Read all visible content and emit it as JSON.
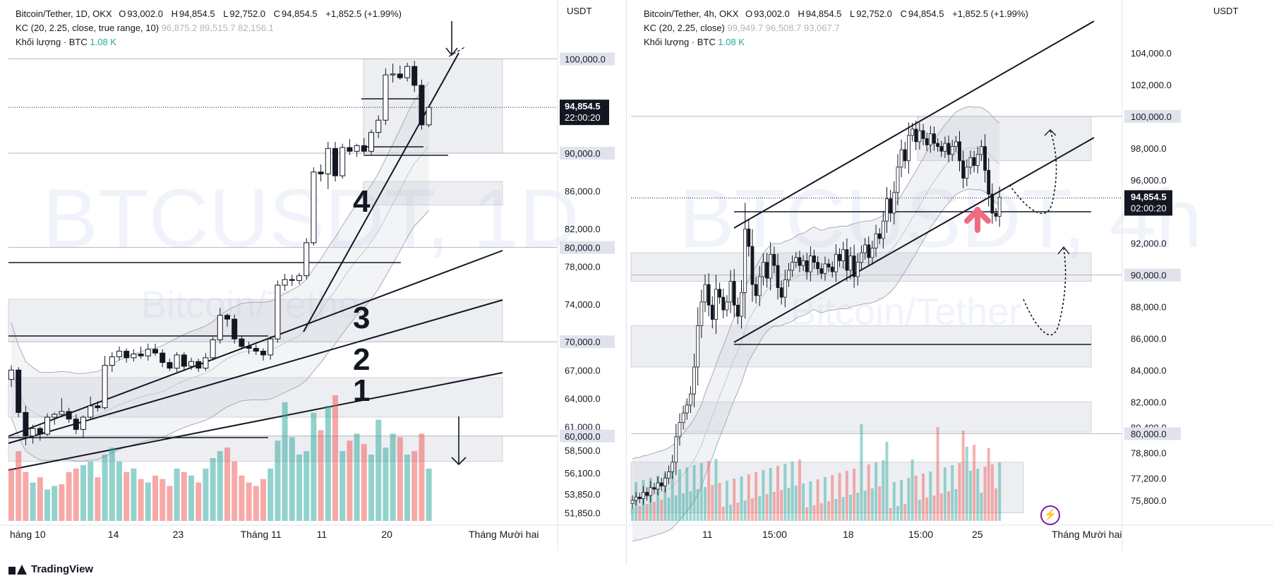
{
  "left": {
    "symbol": "Bitcoin/Tether, 1D, OKX",
    "ohlc": {
      "o_label": "O",
      "o": "93,002.0",
      "h_label": "H",
      "h": "94,854.5",
      "l_label": "L",
      "l": "92,752.0",
      "c_label": "C",
      "c": "94,854.5",
      "change": "+1,852.5 (+1.99%)"
    },
    "kc": {
      "label": "KC (20, 2.25, close, true range, 10)",
      "v1": "96,875.2",
      "v2": "89,515.7",
      "v3": "82,156.1"
    },
    "volume": {
      "label": "Khối lượng · BTC",
      "value": "1.08 K"
    },
    "currency": "USDT",
    "watermark": "BTCUSDT, 1D",
    "watermark_sub": "Bitcoin/Tether",
    "price_badge": {
      "price": "94,854.5",
      "time": "22:00:20"
    },
    "wave_labels": [
      "4",
      "3",
      "2",
      "1"
    ],
    "chart_data": {
      "type": "candlestick",
      "title": "Bitcoin/Tether, 1D, OKX",
      "ylim": [
        51000,
        104000
      ],
      "yticks": [
        100000,
        90000,
        86000,
        82000,
        80000,
        78000,
        74000,
        70000,
        67000,
        64000,
        61000,
        60000,
        58500,
        56100,
        53850,
        51850
      ],
      "ytick_labels": [
        "100,000.0",
        "90,000.0",
        "86,000.0",
        "82,000.0",
        "80,000.0",
        "78,000.0",
        "74,000.0",
        "70,000.0",
        "67,000.0",
        "64,000.0",
        "61,000.0",
        "60,000.0",
        "58,500.0",
        "56,100.0",
        "53,850.0",
        "51,850.0"
      ],
      "highlighted_levels": [
        100000,
        90000,
        80000,
        70000,
        60000
      ],
      "current_price": 94854.5,
      "x_tick_labels": [
        "háng 10",
        "14",
        "23",
        "Tháng 11",
        "11",
        "20",
        "Tháng Mười hai"
      ],
      "x_tick_index": [
        0,
        14,
        23,
        33,
        43,
        52,
        62
      ],
      "candles": [
        [
          66000,
          67500,
          65200,
          67000
        ],
        [
          67000,
          67300,
          62000,
          62500
        ],
        [
          62500,
          63200,
          59000,
          60000
        ],
        [
          60000,
          61200,
          59200,
          60800
        ],
        [
          60800,
          61000,
          59500,
          60200
        ],
        [
          60200,
          62400,
          60000,
          62000
        ],
        [
          62000,
          62500,
          61200,
          62300
        ],
        [
          62300,
          64000,
          62000,
          62600
        ],
        [
          62600,
          63000,
          61400,
          61800
        ],
        [
          61800,
          62300,
          60200,
          60700
        ],
        [
          60700,
          62200,
          59800,
          62000
        ],
        [
          62000,
          64200,
          61800,
          63200
        ],
        [
          63200,
          63700,
          62600,
          63000
        ],
        [
          63000,
          68500,
          62800,
          67500
        ],
        [
          67500,
          68900,
          66800,
          68400
        ],
        [
          68400,
          69500,
          68000,
          69000
        ],
        [
          69000,
          69300,
          67800,
          68300
        ],
        [
          68300,
          69200,
          67900,
          68700
        ],
        [
          68700,
          69500,
          68200,
          68500
        ],
        [
          68500,
          69800,
          68000,
          69200
        ],
        [
          69200,
          69800,
          68500,
          68800
        ],
        [
          68800,
          69200,
          67300,
          67800
        ],
        [
          67800,
          68200,
          66900,
          67200
        ],
        [
          67200,
          68900,
          66800,
          68600
        ],
        [
          68600,
          68900,
          66900,
          67400
        ],
        [
          67400,
          68300,
          67000,
          67900
        ],
        [
          67900,
          68200,
          66800,
          67200
        ],
        [
          67200,
          68800,
          66900,
          68300
        ],
        [
          68300,
          70500,
          68000,
          70200
        ],
        [
          70200,
          73600,
          69800,
          72800
        ],
        [
          72800,
          73000,
          71600,
          72400
        ],
        [
          72400,
          72900,
          69800,
          70300
        ],
        [
          70300,
          70600,
          69200,
          69500
        ],
        [
          69500,
          70000,
          68700,
          69300
        ],
        [
          69300,
          69700,
          68600,
          69000
        ],
        [
          69000,
          69300,
          68000,
          68600
        ],
        [
          68600,
          70600,
          68100,
          70300
        ],
        [
          70300,
          76500,
          69900,
          76000
        ],
        [
          76000,
          77200,
          75400,
          76600
        ],
        [
          76600,
          77100,
          75900,
          76500
        ],
        [
          76500,
          77300,
          76100,
          77000
        ],
        [
          77000,
          81000,
          76600,
          80500
        ],
        [
          80500,
          88500,
          80200,
          88000
        ],
        [
          88000,
          88800,
          87000,
          87800
        ],
        [
          87800,
          91200,
          86200,
          90500
        ],
        [
          90500,
          91200,
          87000,
          87600
        ],
        [
          87600,
          91000,
          87300,
          90600
        ],
        [
          90600,
          91500,
          89800,
          90200
        ],
        [
          90200,
          91000,
          89600,
          90800
        ],
        [
          90800,
          91600,
          89900,
          90200
        ],
        [
          90200,
          92500,
          89800,
          92200
        ],
        [
          92200,
          94000,
          91600,
          93500
        ],
        [
          93500,
          99000,
          93000,
          98300
        ],
        [
          98300,
          99500,
          97500,
          98400
        ],
        [
          98400,
          99300,
          97800,
          98000
        ],
        [
          98000,
          99600,
          97600,
          99200
        ],
        [
          99200,
          99800,
          96500,
          97200
        ],
        [
          97200,
          97800,
          92500,
          93000
        ],
        [
          93002,
          94854.5,
          92752,
          94854.5
        ]
      ],
      "volume": [
        30,
        40,
        28,
        22,
        25,
        18,
        20,
        21,
        28,
        30,
        32,
        34,
        25,
        38,
        42,
        34,
        28,
        30,
        24,
        22,
        26,
        24,
        20,
        30,
        28,
        26,
        22,
        30,
        36,
        40,
        42,
        34,
        26,
        22,
        20,
        24,
        30,
        46,
        68,
        48,
        38,
        40,
        62,
        52,
        66,
        72,
        40,
        46,
        50,
        44,
        38,
        58,
        42,
        50,
        48,
        38,
        40,
        50,
        30
      ],
      "volume_up": [
        false,
        false,
        false,
        true,
        false,
        true,
        true,
        false,
        false,
        false,
        true,
        true,
        false,
        true,
        true,
        true,
        false,
        true,
        false,
        true,
        false,
        false,
        false,
        true,
        false,
        true,
        false,
        true,
        true,
        true,
        false,
        false,
        false,
        false,
        false,
        false,
        true,
        true,
        true,
        true,
        true,
        true,
        true,
        false,
        true,
        false,
        true,
        false,
        true,
        false,
        true,
        true,
        true,
        true,
        false,
        true,
        false,
        false,
        true
      ],
      "annotations": [
        "trendline 1",
        "trendline 2",
        "trendline 3",
        "trendline 4"
      ]
    }
  },
  "right": {
    "symbol": "Bitcoin/Tether, 4h, OKX",
    "ohlc": {
      "o_label": "O",
      "o": "93,002.0",
      "h_label": "H",
      "h": "94,854.5",
      "l_label": "L",
      "l": "92,752.0",
      "c_label": "C",
      "c": "94,854.5",
      "change": "+1,852.5 (+1.99%)"
    },
    "kc": {
      "label": "KC (20, 2.25, close)",
      "v1": "99,949.7",
      "v2": "96,508.7",
      "v3": "93,067.7"
    },
    "volume": {
      "label": "Khối lượng · BTC",
      "value": "1.08 K"
    },
    "currency": "USDT",
    "watermark": "BTCUSDT, 4h",
    "watermark_sub": "Bitcoin/Tether",
    "price_badge": {
      "price": "94,854.5",
      "time": "02:00:20"
    },
    "chart_data": {
      "type": "candlestick",
      "title": "Bitcoin/Tether, 4h, OKX",
      "ylim": [
        74500,
        106000
      ],
      "yticks": [
        104000,
        102000,
        100000,
        98000,
        96000,
        92000,
        90000,
        88000,
        86000,
        84000,
        82000,
        80400,
        80000,
        78800,
        77200,
        75800
      ],
      "ytick_labels": [
        "104,000.0",
        "102,000.0",
        "100,000.0",
        "98,000.0",
        "96,000.0",
        "92,000.0",
        "90,000.0",
        "88,000.0",
        "86,000.0",
        "84,000.0",
        "82,000.0",
        "80,400.0",
        "80,000.0",
        "78,800.0",
        "77,200.0",
        "75,800.0"
      ],
      "highlighted_levels": [
        100000,
        90000,
        80000
      ],
      "current_price": 94854.5,
      "x_tick_labels": [
        "11",
        "15:00",
        "18",
        "15:00",
        "25",
        "Tháng Mười hai"
      ],
      "x_tick_index": [
        18,
        38,
        58,
        77,
        96,
        120
      ],
      "trend": [
        75800,
        76000,
        75900,
        76300,
        76100,
        76600,
        76500,
        76900,
        76700,
        77200,
        77600,
        78200,
        79800,
        80700,
        81300,
        81800,
        82500,
        84200,
        86800,
        88300,
        89400,
        88100,
        87200,
        89100,
        88600,
        87800,
        88300,
        89600,
        88100,
        87400,
        88900,
        92900,
        91800,
        89400,
        88700,
        89900,
        90800,
        89800,
        91300,
        90600,
        89200,
        88600,
        89700,
        90300,
        90800,
        91100,
        90600,
        90900,
        90200,
        91200,
        90800,
        90400,
        90100,
        90700,
        90500,
        90200,
        91300,
        90900,
        91600,
        90300,
        91200,
        89900,
        90800,
        91400,
        91900,
        91100,
        91700,
        92600,
        92300,
        93400,
        94800,
        93900,
        95200,
        96800,
        97900,
        97200,
        98800,
        99200,
        98400,
        99100,
        98600,
        98200,
        98900,
        98300,
        98100,
        97800,
        98300,
        97600,
        98100,
        98400,
        97200,
        96100,
        96800,
        97400,
        96900,
        97600,
        98100,
        96600,
        95100,
        93900,
        93700,
        94900
      ],
      "annotations": [
        "rising channel",
        "target arrows"
      ]
    }
  }
}
